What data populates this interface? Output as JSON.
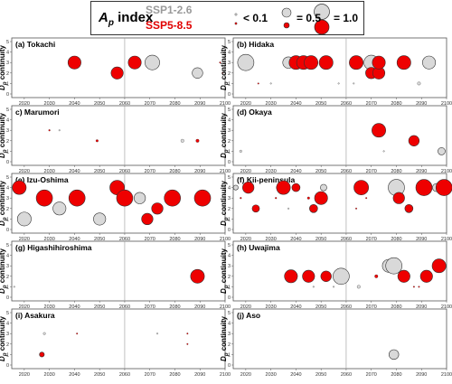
{
  "legend": {
    "ap_label": "A",
    "ap_sub": "p",
    "ap_suffix": " index",
    "ssp1": "SSP1-2.6",
    "ssp5": "SSP5-8.5",
    "size_small": "< 0.1",
    "size_mid": "= 0.5",
    "size_large": "= 1.0"
  },
  "colors": {
    "ssp1": "#d9d9d9",
    "ssp5": "#ee0000",
    "stroke": "#333333"
  },
  "axis": {
    "ylabel_main": "D",
    "ylabel_sub": "p",
    "ylabel_rest": " continuity",
    "xticks": [
      2020,
      2030,
      2040,
      2050,
      2060,
      2070,
      2080,
      2090,
      2100
    ],
    "yticks": [
      0,
      1,
      2,
      3,
      4,
      5
    ],
    "xlim": [
      2015,
      2100
    ],
    "ylim": [
      0,
      5
    ],
    "reference_line": 2060
  },
  "chart_data": [
    {
      "type": "scatter",
      "title": "(a) Tokachi",
      "points": [
        {
          "x": 2040,
          "y": 3,
          "ap": 0.8,
          "s": "SSP5-8.5"
        },
        {
          "x": 2057,
          "y": 2,
          "ap": 0.75,
          "s": "SSP5-8.5"
        },
        {
          "x": 2064,
          "y": 3,
          "ap": 0.8,
          "s": "SSP5-8.5"
        },
        {
          "x": 2071,
          "y": 3,
          "ap": 0.9,
          "s": "SSP1-2.6"
        },
        {
          "x": 2089,
          "y": 2,
          "ap": 0.65,
          "s": "SSP1-2.6"
        },
        {
          "x": 2098,
          "y": 3,
          "ap": 0.01,
          "s": "SSP5-8.5"
        },
        {
          "x": 2099,
          "y": 2,
          "ap": 0.01,
          "s": "SSP5-8.5"
        }
      ]
    },
    {
      "type": "scatter",
      "title": "(b) Hidaka",
      "points": [
        {
          "x": 2020,
          "y": 3,
          "ap": 1.0,
          "s": "SSP1-2.6"
        },
        {
          "x": 2025,
          "y": 1,
          "ap": 0.03,
          "s": "SSP5-8.5"
        },
        {
          "x": 2030,
          "y": 1,
          "ap": 0.01,
          "s": "SSP1-2.6"
        },
        {
          "x": 2037,
          "y": 3,
          "ap": 0.7,
          "s": "SSP1-2.6"
        },
        {
          "x": 2040,
          "y": 3,
          "ap": 0.85,
          "s": "SSP5-8.5"
        },
        {
          "x": 2043,
          "y": 3,
          "ap": 0.85,
          "s": "SSP5-8.5"
        },
        {
          "x": 2046,
          "y": 3,
          "ap": 0.85,
          "s": "SSP5-8.5"
        },
        {
          "x": 2052,
          "y": 3,
          "ap": 0.85,
          "s": "SSP5-8.5"
        },
        {
          "x": 2057,
          "y": 1,
          "ap": 0.01,
          "s": "SSP1-2.6"
        },
        {
          "x": 2063,
          "y": 1,
          "ap": 0.01,
          "s": "SSP1-2.6"
        },
        {
          "x": 2064,
          "y": 3,
          "ap": 0.85,
          "s": "SSP5-8.5"
        },
        {
          "x": 2070,
          "y": 3,
          "ap": 0.9,
          "s": "SSP1-2.6"
        },
        {
          "x": 2070,
          "y": 2,
          "ap": 0.7,
          "s": "SSP5-8.5"
        },
        {
          "x": 2073,
          "y": 2,
          "ap": 0.75,
          "s": "SSP5-8.5"
        },
        {
          "x": 2073,
          "y": 3,
          "ap": 0.8,
          "s": "SSP5-8.5"
        },
        {
          "x": 2083,
          "y": 3,
          "ap": 0.85,
          "s": "SSP5-8.5"
        },
        {
          "x": 2089,
          "y": 1,
          "ap": 0.2,
          "s": "SSP1-2.6"
        },
        {
          "x": 2093,
          "y": 3,
          "ap": 0.8,
          "s": "SSP1-2.6"
        }
      ]
    },
    {
      "type": "scatter",
      "title": "c) Marumori",
      "points": [
        {
          "x": 2030,
          "y": 3,
          "ap": 0.1,
          "s": "SSP5-8.5"
        },
        {
          "x": 2034,
          "y": 3,
          "ap": 0.01,
          "s": "SSP1-2.6"
        },
        {
          "x": 2049,
          "y": 2,
          "ap": 0.15,
          "s": "SSP5-8.5"
        },
        {
          "x": 2083,
          "y": 2,
          "ap": 0.2,
          "s": "SSP1-2.6"
        },
        {
          "x": 2089,
          "y": 2,
          "ap": 0.2,
          "s": "SSP5-8.5"
        }
      ]
    },
    {
      "type": "scatter",
      "title": "(d) Okaya",
      "points": [
        {
          "x": 2018,
          "y": 1,
          "ap": 0.15,
          "s": "SSP1-2.6"
        },
        {
          "x": 2073,
          "y": 3,
          "ap": 0.85,
          "s": "SSP5-8.5"
        },
        {
          "x": 2075,
          "y": 1,
          "ap": 0.02,
          "s": "SSP1-2.6"
        },
        {
          "x": 2087,
          "y": 2,
          "ap": 0.65,
          "s": "SSP5-8.5"
        },
        {
          "x": 2098,
          "y": 1,
          "ap": 0.45,
          "s": "SSP1-2.6"
        }
      ]
    },
    {
      "type": "scatter",
      "title": "(e) Izu-Oshima",
      "points": [
        {
          "x": 2018,
          "y": 4,
          "ap": 0.85,
          "s": "SSP5-8.5"
        },
        {
          "x": 2020,
          "y": 1,
          "ap": 0.85,
          "s": "SSP1-2.6"
        },
        {
          "x": 2028,
          "y": 3,
          "ap": 1.0,
          "s": "SSP5-8.5"
        },
        {
          "x": 2034,
          "y": 2,
          "ap": 0.8,
          "s": "SSP1-2.6"
        },
        {
          "x": 2041,
          "y": 3,
          "ap": 1.0,
          "s": "SSP5-8.5"
        },
        {
          "x": 2050,
          "y": 1,
          "ap": 0.75,
          "s": "SSP1-2.6"
        },
        {
          "x": 2057,
          "y": 4,
          "ap": 0.9,
          "s": "SSP5-8.5"
        },
        {
          "x": 2060,
          "y": 3,
          "ap": 1.0,
          "s": "SSP5-8.5"
        },
        {
          "x": 2066,
          "y": 3,
          "ap": 0.7,
          "s": "SSP1-2.6"
        },
        {
          "x": 2069,
          "y": 1,
          "ap": 0.7,
          "s": "SSP5-8.5"
        },
        {
          "x": 2073,
          "y": 2,
          "ap": 0.7,
          "s": "SSP5-8.5"
        },
        {
          "x": 2079,
          "y": 3,
          "ap": 1.0,
          "s": "SSP5-8.5"
        },
        {
          "x": 2091,
          "y": 3,
          "ap": 1.0,
          "s": "SSP5-8.5"
        }
      ]
    },
    {
      "type": "scatter",
      "title": "(f) Kii-peninsula",
      "points": [
        {
          "x": 2016,
          "y": 4,
          "ap": 0.3,
          "s": "SSP1-2.6"
        },
        {
          "x": 2018,
          "y": 3,
          "ap": 0.1,
          "s": "SSP5-8.5"
        },
        {
          "x": 2021,
          "y": 4,
          "ap": 0.7,
          "s": "SSP5-8.5"
        },
        {
          "x": 2024,
          "y": 2,
          "ap": 0.45,
          "s": "SSP5-8.5"
        },
        {
          "x": 2032,
          "y": 3,
          "ap": 0.1,
          "s": "SSP5-8.5"
        },
        {
          "x": 2033,
          "y": 4,
          "ap": 0.25,
          "s": "SSP1-2.6"
        },
        {
          "x": 2035,
          "y": 4,
          "ap": 0.85,
          "s": "SSP5-8.5"
        },
        {
          "x": 2037,
          "y": 2,
          "ap": 0.05,
          "s": "SSP1-2.6"
        },
        {
          "x": 2040,
          "y": 4,
          "ap": 0.5,
          "s": "SSP5-8.5"
        },
        {
          "x": 2045,
          "y": 3,
          "ap": 0.15,
          "s": "SSP5-8.5"
        },
        {
          "x": 2047,
          "y": 2,
          "ap": 0.5,
          "s": "SSP5-8.5"
        },
        {
          "x": 2050,
          "y": 3,
          "ap": 0.8,
          "s": "SSP5-8.5"
        },
        {
          "x": 2051,
          "y": 4,
          "ap": 0.4,
          "s": "SSP1-2.6"
        },
        {
          "x": 2064,
          "y": 2,
          "ap": 0.01,
          "s": "SSP5-8.5"
        },
        {
          "x": 2066,
          "y": 4,
          "ap": 0.9,
          "s": "SSP5-8.5"
        },
        {
          "x": 2068,
          "y": 3,
          "ap": 0.05,
          "s": "SSP5-8.5"
        },
        {
          "x": 2080,
          "y": 4,
          "ap": 1.0,
          "s": "SSP1-2.6"
        },
        {
          "x": 2081,
          "y": 3,
          "ap": 0.7,
          "s": "SSP5-8.5"
        },
        {
          "x": 2085,
          "y": 2,
          "ap": 0.5,
          "s": "SSP5-8.5"
        },
        {
          "x": 2091,
          "y": 4,
          "ap": 1.0,
          "s": "SSP5-8.5"
        },
        {
          "x": 2096,
          "y": 4,
          "ap": 0.5,
          "s": "SSP1-2.6"
        },
        {
          "x": 2099,
          "y": 4,
          "ap": 1.0,
          "s": "SSP5-8.5"
        }
      ]
    },
    {
      "type": "scatter",
      "title": "(g) Higashihiroshima",
      "points": [
        {
          "x": 2016,
          "y": 1,
          "ap": 0.01,
          "s": "SSP1-2.6"
        },
        {
          "x": 2089,
          "y": 2,
          "ap": 0.85,
          "s": "SSP5-8.5"
        }
      ]
    },
    {
      "type": "scatter",
      "title": "(h) Uwajima",
      "points": [
        {
          "x": 2038,
          "y": 2,
          "ap": 0.8,
          "s": "SSP5-8.5"
        },
        {
          "x": 2045,
          "y": 2,
          "ap": 0.75,
          "s": "SSP5-8.5"
        },
        {
          "x": 2047,
          "y": 1,
          "ap": 0.02,
          "s": "SSP1-2.6"
        },
        {
          "x": 2052,
          "y": 2,
          "ap": 0.65,
          "s": "SSP5-8.5"
        },
        {
          "x": 2055,
          "y": 1,
          "ap": 0.01,
          "s": "SSP1-2.6"
        },
        {
          "x": 2058,
          "y": 2,
          "ap": 1.0,
          "s": "SSP1-2.6"
        },
        {
          "x": 2065,
          "y": 1,
          "ap": 0.2,
          "s": "SSP1-2.6"
        },
        {
          "x": 2072,
          "y": 2,
          "ap": 0.2,
          "s": "SSP5-8.5"
        },
        {
          "x": 2077,
          "y": 3,
          "ap": 0.8,
          "s": "SSP1-2.6"
        },
        {
          "x": 2079,
          "y": 3,
          "ap": 1.0,
          "s": "SSP1-2.6"
        },
        {
          "x": 2083,
          "y": 2,
          "ap": 0.75,
          "s": "SSP5-8.5"
        },
        {
          "x": 2087,
          "y": 1,
          "ap": 0.08,
          "s": "SSP5-8.5"
        },
        {
          "x": 2089,
          "y": 1,
          "ap": 0.08,
          "s": "SSP5-8.5"
        },
        {
          "x": 2092,
          "y": 2,
          "ap": 0.75,
          "s": "SSP5-8.5"
        },
        {
          "x": 2097,
          "y": 3,
          "ap": 0.85,
          "s": "SSP5-8.5"
        }
      ]
    },
    {
      "type": "scatter",
      "title": "(i) Asakura",
      "points": [
        {
          "x": 2028,
          "y": 3,
          "ap": 0.15,
          "s": "SSP1-2.6"
        },
        {
          "x": 2027,
          "y": 1,
          "ap": 0.3,
          "s": "SSP5-8.5"
        },
        {
          "x": 2041,
          "y": 3,
          "ap": 0.05,
          "s": "SSP5-8.5"
        },
        {
          "x": 2073,
          "y": 3,
          "ap": 0.05,
          "s": "SSP1-2.6"
        },
        {
          "x": 2085,
          "y": 3,
          "ap": 0.05,
          "s": "SSP5-8.5"
        },
        {
          "x": 2085,
          "y": 2,
          "ap": 0.05,
          "s": "SSP5-8.5"
        }
      ]
    },
    {
      "type": "scatter",
      "title": "(j) Aso",
      "points": [
        {
          "x": 2079,
          "y": 1,
          "ap": 0.6,
          "s": "SSP1-2.6"
        }
      ]
    }
  ]
}
